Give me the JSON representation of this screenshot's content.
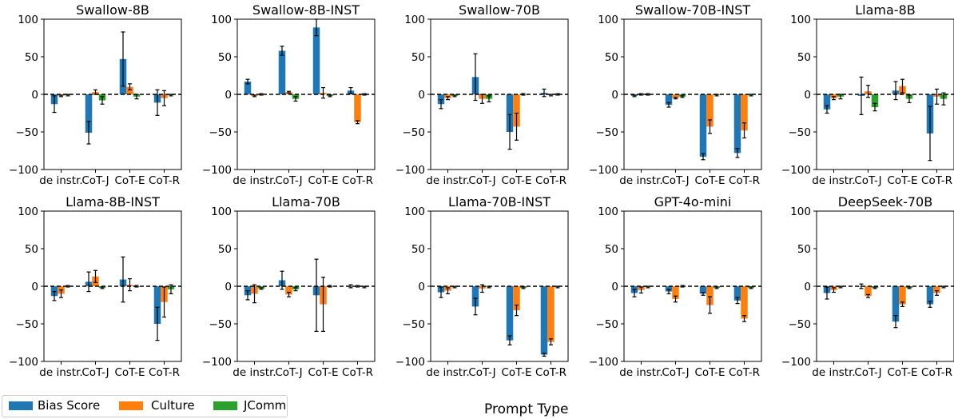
{
  "colors": {
    "bias": "#1f77b4",
    "culture": "#ff7f0e",
    "jcomm": "#2ca02c"
  },
  "legend": [
    "Bias Score",
    "Culture",
    "JComm"
  ],
  "xlabel": "Prompt Type",
  "chart_data": {
    "type": "bar",
    "ylim": [
      -100,
      100
    ],
    "yticks": [
      100,
      50,
      0,
      -50,
      -100
    ],
    "categories": [
      "de instr.",
      "CoT-J",
      "CoT-E",
      "CoT-R"
    ],
    "series_names": [
      "Bias Score",
      "Culture",
      "JComm"
    ],
    "panels": [
      {
        "title": "Swallow-8B",
        "values": [
          [
            -13,
            -51,
            47,
            -11
          ],
          [
            -2,
            3,
            10,
            -5
          ],
          [
            -1,
            -8,
            -3,
            -1
          ]
        ],
        "errors": [
          [
            11,
            15,
            36,
            17
          ],
          [
            1,
            3,
            4,
            10
          ],
          [
            1,
            5,
            3,
            1
          ]
        ]
      },
      {
        "title": "Swallow-8B-INST",
        "values": [
          [
            17,
            58,
            89,
            5
          ],
          [
            -2,
            3,
            2,
            -37
          ],
          [
            0,
            -6,
            -2,
            0
          ]
        ],
        "errors": [
          [
            3,
            6,
            11,
            4
          ],
          [
            1,
            1,
            7,
            2
          ],
          [
            1,
            3,
            1,
            1
          ]
        ]
      },
      {
        "title": "Swallow-70B",
        "values": [
          [
            -13,
            23,
            -50,
            2
          ],
          [
            -5,
            -6,
            -43,
            -1
          ],
          [
            -2,
            -6,
            0,
            0
          ]
        ],
        "errors": [
          [
            6,
            31,
            23,
            5
          ],
          [
            2,
            6,
            18,
            1
          ],
          [
            1,
            4,
            1,
            1
          ]
        ]
      },
      {
        "title": "Swallow-70B-INST",
        "values": [
          [
            -2,
            -14,
            -83,
            -78
          ],
          [
            0,
            -5,
            -43,
            -48
          ],
          [
            0,
            -3,
            -1,
            -1
          ]
        ],
        "errors": [
          [
            1,
            3,
            4,
            6
          ],
          [
            1,
            1,
            9,
            10
          ],
          [
            1,
            1,
            1,
            1
          ]
        ]
      },
      {
        "title": "Llama-8B",
        "values": [
          [
            -20,
            -2,
            5,
            -52
          ],
          [
            -5,
            4,
            11,
            -3
          ],
          [
            -3,
            -17,
            -6,
            -6
          ]
        ],
        "errors": [
          [
            5,
            25,
            12,
            36
          ],
          [
            2,
            8,
            9,
            10
          ],
          [
            3,
            5,
            5,
            8
          ]
        ]
      },
      {
        "title": "Llama-8B-INST",
        "values": [
          [
            -13,
            6,
            9,
            -50
          ],
          [
            -10,
            13,
            2,
            -21
          ],
          [
            0,
            -2,
            0,
            -4
          ]
        ],
        "errors": [
          [
            6,
            13,
            30,
            22
          ],
          [
            5,
            8,
            8,
            20
          ],
          [
            1,
            1,
            1,
            6
          ]
        ]
      },
      {
        "title": "Llama-70B",
        "values": [
          [
            -12,
            8,
            -12,
            0
          ],
          [
            -10,
            -11,
            -24,
            0
          ],
          [
            -3,
            -4,
            0,
            -1
          ]
        ],
        "errors": [
          [
            6,
            12,
            48,
            2
          ],
          [
            12,
            3,
            36,
            1
          ],
          [
            1,
            2,
            1,
            1
          ]
        ]
      },
      {
        "title": "Llama-70B-INST",
        "values": [
          [
            -8,
            -27,
            -72,
            -91
          ],
          [
            -6,
            -3,
            -32,
            -74
          ],
          [
            -1,
            -1,
            -2,
            -1
          ]
        ],
        "errors": [
          [
            7,
            11,
            6,
            2
          ],
          [
            4,
            5,
            7,
            4
          ],
          [
            1,
            1,
            1,
            1
          ]
        ]
      },
      {
        "title": "GPT-4o-mini",
        "values": [
          [
            -9,
            -7,
            -10,
            -19
          ],
          [
            -5,
            -17,
            -25,
            -43
          ],
          [
            -1,
            0,
            -2,
            -2
          ]
        ],
        "errors": [
          [
            5,
            3,
            2,
            4
          ],
          [
            4,
            4,
            11,
            4
          ],
          [
            1,
            1,
            1,
            1
          ]
        ]
      },
      {
        "title": "DeepSeek-70B",
        "values": [
          [
            -9,
            0,
            -47,
            -24
          ],
          [
            -5,
            -13,
            -24,
            -9
          ],
          [
            -1,
            -2,
            -2,
            -1
          ]
        ],
        "errors": [
          [
            8,
            3,
            8,
            4
          ],
          [
            3,
            2,
            3,
            3
          ],
          [
            1,
            1,
            1,
            1
          ]
        ]
      }
    ]
  }
}
